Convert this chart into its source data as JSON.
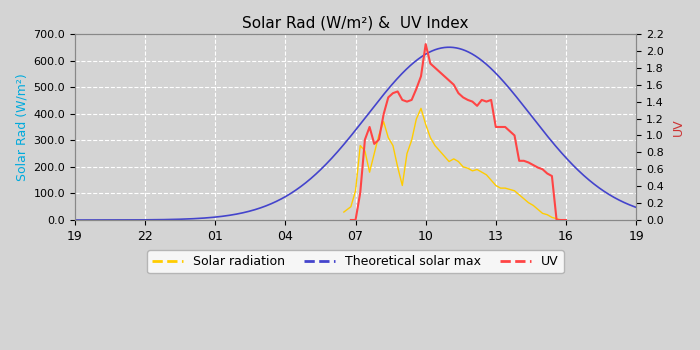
{
  "title": "Solar Rad (W/m²) &  UV Index",
  "xlabel": "",
  "ylabel_left": "Solar Rad (W/m²)",
  "ylabel_right": "UV",
  "ylim_left": [
    0,
    700
  ],
  "ylim_right": [
    0,
    2.2
  ],
  "yticks_left": [
    0.0,
    100.0,
    200.0,
    300.0,
    400.0,
    500.0,
    600.0,
    700.0
  ],
  "yticks_right": [
    0.0,
    0.2,
    0.4,
    0.6,
    0.8,
    1.0,
    1.2,
    1.4,
    1.6,
    1.8,
    2.0,
    2.2
  ],
  "xtick_labels": [
    "19",
    "22",
    "01",
    "04",
    "07",
    "10",
    "13",
    "16",
    "19"
  ],
  "xtick_positions": [
    0,
    3,
    6,
    9,
    12,
    15,
    18,
    21,
    24
  ],
  "xlim": [
    0,
    24
  ],
  "background_color": "#d4d4d4",
  "grid_color": "#ffffff",
  "title_color": "#000000",
  "ylabel_left_color": "#00aadd",
  "ylabel_right_color": "#cc3333",
  "legend_labels": [
    "Solar radiation",
    "Theoretical solar max",
    "UV"
  ],
  "legend_colors": [
    "#ffcc00",
    "#4444cc",
    "#ff4444"
  ],
  "solar_rad_color": "#ffcc00",
  "solar_max_color": "#4444cc",
  "uv_color": "#ff4444",
  "solar_max_peak_x": 16.0,
  "solar_max_peak_y": 650,
  "solar_max_sigma": 3.5,
  "solar_rad_x": [
    11.5,
    11.8,
    12.0,
    12.2,
    12.4,
    12.6,
    12.8,
    13.0,
    13.2,
    13.4,
    13.6,
    13.8,
    14.0,
    14.2,
    14.4,
    14.6,
    14.8,
    15.0,
    15.2,
    15.4,
    15.6,
    15.8,
    16.0,
    16.2,
    16.4,
    16.6,
    16.8,
    17.0,
    17.2,
    17.4,
    17.6,
    17.8,
    18.0,
    18.2,
    18.4,
    18.6,
    18.8,
    19.0,
    19.2,
    19.4,
    19.6,
    19.8,
    20.0,
    20.2,
    20.4,
    20.6,
    20.8,
    21.0
  ],
  "solar_rad_y": [
    30,
    50,
    110,
    280,
    260,
    180,
    250,
    320,
    370,
    310,
    280,
    200,
    130,
    250,
    300,
    380,
    420,
    360,
    310,
    280,
    260,
    240,
    220,
    230,
    220,
    200,
    195,
    185,
    190,
    180,
    170,
    150,
    130,
    120,
    120,
    115,
    110,
    95,
    80,
    65,
    55,
    40,
    25,
    20,
    10,
    5,
    0,
    0
  ],
  "uv_x": [
    11.8,
    12.0,
    12.2,
    12.4,
    12.6,
    12.8,
    13.0,
    13.2,
    13.4,
    13.6,
    13.8,
    14.0,
    14.2,
    14.4,
    14.6,
    14.8,
    15.0,
    15.2,
    15.4,
    15.6,
    15.8,
    16.0,
    16.2,
    16.4,
    16.6,
    16.8,
    17.0,
    17.2,
    17.4,
    17.6,
    17.8,
    18.0,
    18.2,
    18.4,
    18.6,
    18.8,
    19.0,
    19.2,
    19.4,
    19.6,
    19.8,
    20.0,
    20.2,
    20.4,
    20.6,
    20.8,
    21.0
  ],
  "uv_y": [
    0.0,
    0.0,
    0.32,
    0.95,
    1.1,
    0.9,
    0.95,
    1.25,
    1.45,
    1.5,
    1.52,
    1.42,
    1.4,
    1.42,
    1.55,
    1.7,
    2.08,
    1.85,
    1.8,
    1.75,
    1.7,
    1.65,
    1.6,
    1.5,
    1.45,
    1.42,
    1.4,
    1.35,
    1.42,
    1.4,
    1.42,
    1.1,
    1.1,
    1.1,
    1.05,
    1.0,
    0.7,
    0.7,
    0.68,
    0.65,
    0.62,
    0.6,
    0.55,
    0.52,
    0.0,
    0.0,
    0.0
  ]
}
